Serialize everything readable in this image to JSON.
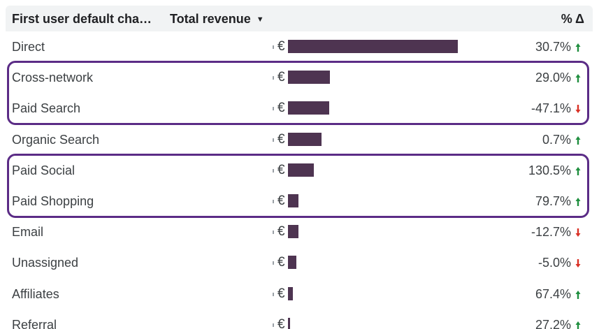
{
  "header": {
    "dimension": "First user default cha…",
    "metric": "Total revenue",
    "change": "% Δ"
  },
  "currency_symbol": "€",
  "colors": {
    "bar": "#4e3451",
    "up": "#1e8e3e",
    "down": "#d93025",
    "highlight": "#5b2c86"
  },
  "rows": [
    {
      "label": "Direct",
      "bar_fraction": 1.0,
      "change": "30.7%",
      "direction": "up"
    },
    {
      "label": "Cross-network",
      "bar_fraction": 0.247,
      "change": "29.0%",
      "direction": "up"
    },
    {
      "label": "Paid Search",
      "bar_fraction": 0.243,
      "change": "-47.1%",
      "direction": "down"
    },
    {
      "label": "Organic Search",
      "bar_fraction": 0.198,
      "change": "0.7%",
      "direction": "up"
    },
    {
      "label": "Paid Social",
      "bar_fraction": 0.153,
      "change": "130.5%",
      "direction": "up"
    },
    {
      "label": "Paid Shopping",
      "bar_fraction": 0.062,
      "change": "79.7%",
      "direction": "up"
    },
    {
      "label": "Email",
      "bar_fraction": 0.062,
      "change": "-12.7%",
      "direction": "down"
    },
    {
      "label": "Unassigned",
      "bar_fraction": 0.05,
      "change": "-5.0%",
      "direction": "down"
    },
    {
      "label": "Affiliates",
      "bar_fraction": 0.029,
      "change": "67.4%",
      "direction": "up"
    },
    {
      "label": "Referral",
      "bar_fraction": 0.012,
      "change": "27.2%",
      "direction": "up"
    }
  ],
  "highlight_groups": [
    {
      "rows": [
        "Cross-network",
        "Paid Search"
      ]
    },
    {
      "rows": [
        "Paid Social",
        "Paid Shopping"
      ]
    }
  ]
}
